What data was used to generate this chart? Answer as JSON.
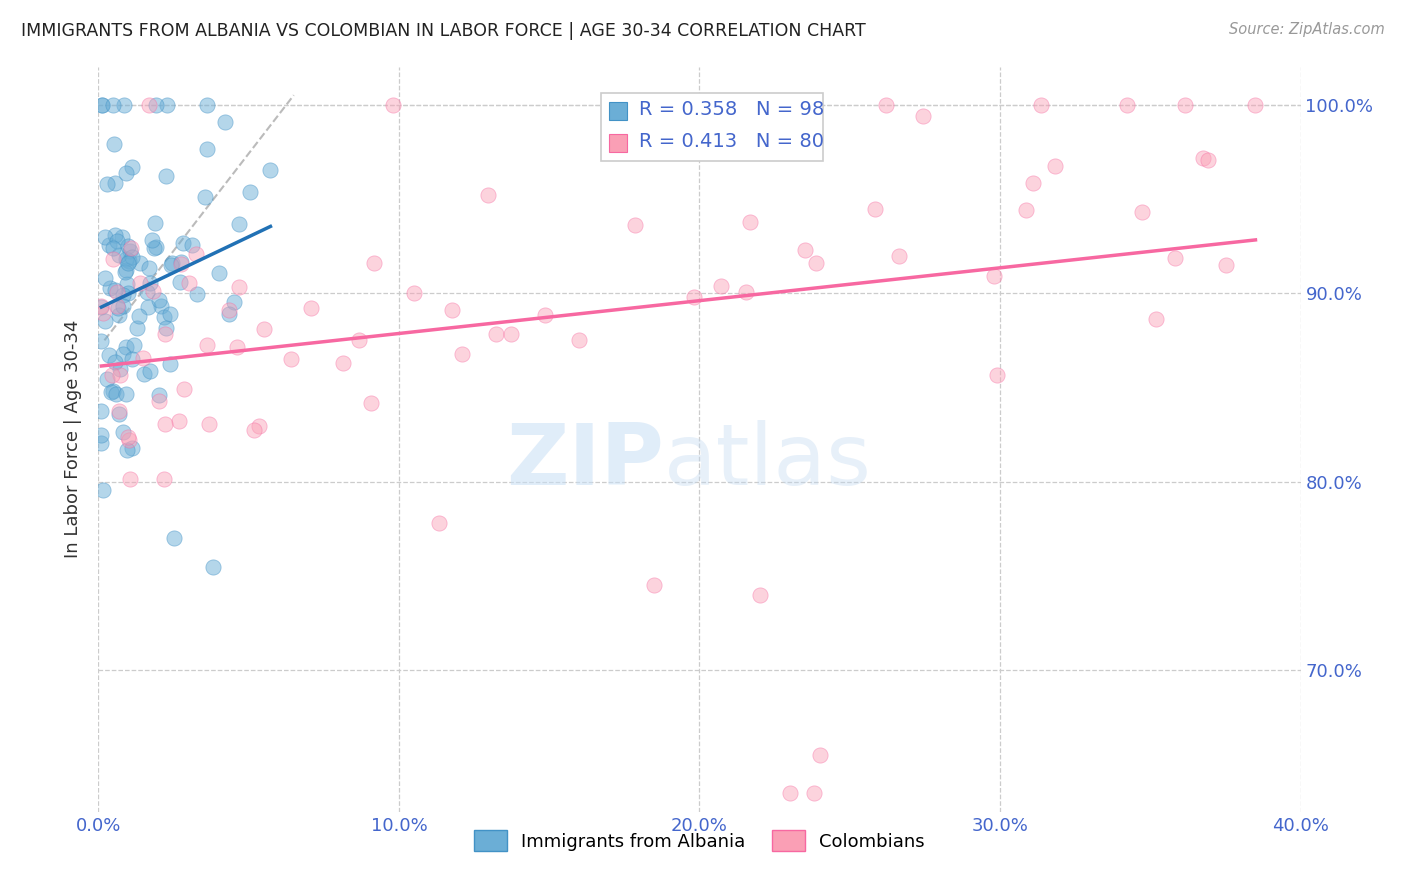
{
  "title": "IMMIGRANTS FROM ALBANIA VS COLOMBIAN IN LABOR FORCE | AGE 30-34 CORRELATION CHART",
  "source": "Source: ZipAtlas.com",
  "ylabel": "In Labor Force | Age 30-34",
  "xlim": [
    0.0,
    0.4
  ],
  "ylim": [
    0.625,
    1.02
  ],
  "yticks": [
    0.7,
    0.8,
    0.9,
    1.0
  ],
  "ytick_labels": [
    "70.0%",
    "80.0%",
    "90.0%",
    "100.0%"
  ],
  "xticks": [
    0.0,
    0.1,
    0.2,
    0.3,
    0.4
  ],
  "xtick_labels": [
    "0.0%",
    "10.0%",
    "20.0%",
    "30.0%",
    "40.0%"
  ],
  "albania_R": 0.358,
  "albania_N": 98,
  "colombia_R": 0.413,
  "colombia_N": 80,
  "albania_color": "#6baed6",
  "albania_edge_color": "#4292c6",
  "colombia_color": "#fa9fb5",
  "colombia_edge_color": "#f768a1",
  "albania_line_color": "#2171b5",
  "colombia_line_color": "#f768a1",
  "grid_color": "#cccccc",
  "axis_tick_color": "#4466cc",
  "title_color": "#222222",
  "source_color": "#999999"
}
